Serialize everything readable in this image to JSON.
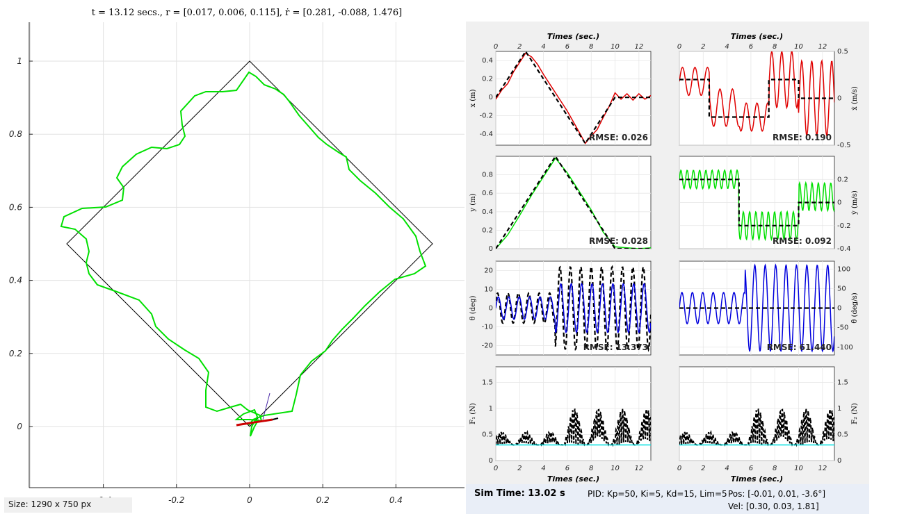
{
  "main_title": "t = 13.12 secs., r = [0.017, 0.006, 0.115], ṙ = [0.281, -0.088, 1.476]",
  "size_label": "Size: 1290 x 750 px",
  "status": {
    "sim_time": "Sim Time: 13.02 s",
    "pid": "PID: Kp=50, Ki=5, Kd=15, Lim=5",
    "pos": "Pos: [-0.01, 0.01, -3.6°]",
    "vel": "Vel: [0.30, 0.03, 1.81]"
  },
  "colors": {
    "reference": "#000000",
    "trajectory": "#00e000",
    "x": "#e00000",
    "y": "#00e000",
    "theta": "#0000dd",
    "force": "#000000",
    "force_ref": "#00e0e0"
  },
  "chart_data": [
    {
      "type": "line",
      "name": "trajectory",
      "title": "t = 13.12 secs., r = [0.017, 0.006, 0.115], ṙ = [0.281, -0.088, 1.476]",
      "xlim": [
        -0.6,
        0.6
      ],
      "ylim": [
        -0.17,
        1.08
      ],
      "xticks": [
        -0.6,
        -0.4,
        -0.2,
        0,
        0.2,
        0.4
      ],
      "yticks": [
        0,
        0.2,
        0.4,
        0.6,
        0.8,
        1
      ],
      "grid": true,
      "series": [
        {
          "x": [
            0,
            0.5,
            0,
            -0.5,
            0
          ],
          "y": [
            0,
            0.5,
            1,
            0.5,
            0
          ],
          "style": "black-thin"
        },
        {
          "x": [
            0.0,
            0.07,
            0.15,
            0.22,
            0.28,
            0.33,
            0.38,
            0.43,
            0.48,
            0.47,
            0.42,
            0.37,
            0.31,
            0.27,
            0.21,
            0.15,
            0.11,
            0.08,
            0.03,
            -0.02,
            0.0
          ],
          "y": [
            0.0,
            0.04,
            0.13,
            0.21,
            0.29,
            0.36,
            0.4,
            0.43,
            0.49,
            0.55,
            0.63,
            0.68,
            0.76,
            0.81,
            0.88,
            0.96,
            0.94,
            0.95,
            0.98,
            0.93,
            0.0
          ],
          "style": "green-approx"
        }
      ]
    },
    {
      "type": "line",
      "name": "x",
      "xlabel": "Times (sec.)",
      "ylabel": "x (m)",
      "xlim": [
        0,
        13
      ],
      "ylim": [
        -0.52,
        0.5
      ],
      "yticks": [
        -0.4,
        -0.2,
        0,
        0.2,
        0.4
      ],
      "rmse": "RMSE: 0.026",
      "reference": {
        "t": [
          0,
          2.5,
          7.5,
          10,
          13
        ],
        "v": [
          0,
          0.5,
          -0.5,
          0,
          0
        ]
      },
      "actual": {
        "t": [
          0,
          0.5,
          1,
          1.5,
          2,
          2.5,
          3,
          3.5,
          4,
          5,
          6,
          7,
          7.5,
          8,
          8.5,
          9,
          9.5,
          10,
          10.5,
          11,
          11.5,
          12,
          12.5,
          13
        ],
        "v": [
          -0.02,
          0.08,
          0.15,
          0.28,
          0.38,
          0.48,
          0.44,
          0.36,
          0.25,
          0.05,
          -0.15,
          -0.38,
          -0.5,
          -0.42,
          -0.35,
          -0.22,
          -0.1,
          0.05,
          -0.02,
          0.04,
          -0.03,
          0.04,
          -0.02,
          0.02
        ]
      }
    },
    {
      "type": "line",
      "name": "xdot",
      "xlabel": "Times (sec.)",
      "ylabel": "ẋ (m/s)",
      "xlim": [
        0,
        13
      ],
      "ylim": [
        -0.5,
        0.5
      ],
      "yticks": [
        -0.5,
        0,
        0.5
      ],
      "rmse": "RMSE: 0.190",
      "reference": {
        "t": [
          0,
          2.5,
          2.5,
          7.5,
          7.5,
          10,
          10,
          13
        ],
        "v": [
          0.2,
          0.2,
          -0.2,
          -0.2,
          0.2,
          0.2,
          0,
          0
        ]
      },
      "actual": {
        "note_free": true,
        "t": [
          0,
          13
        ],
        "v": [
          0,
          0
        ]
      }
    },
    {
      "type": "line",
      "name": "y",
      "xlabel": "Times (sec.)",
      "ylabel": "y (m)",
      "xlim": [
        0,
        13
      ],
      "ylim": [
        0,
        1
      ],
      "yticks": [
        0,
        0.2,
        0.4,
        0.6,
        0.8
      ],
      "rmse": "RMSE: 0.028",
      "reference": {
        "t": [
          0,
          5,
          10,
          13
        ],
        "v": [
          0,
          1,
          0,
          0
        ]
      },
      "actual": {
        "t": [
          0,
          1,
          2,
          3,
          4,
          5,
          6,
          7,
          8,
          9,
          10,
          11,
          12,
          13
        ],
        "v": [
          0,
          0.15,
          0.36,
          0.58,
          0.78,
          0.98,
          0.82,
          0.62,
          0.42,
          0.18,
          0.02,
          0.01,
          0.0,
          0.01
        ]
      }
    },
    {
      "type": "line",
      "name": "ydot",
      "xlabel": "Times (sec.)",
      "ylabel": "ẏ (m/s)",
      "xlim": [
        0,
        13
      ],
      "ylim": [
        -0.4,
        0.4
      ],
      "yticks": [
        -0.4,
        -0.2,
        0,
        0.2
      ],
      "rmse": "RMSE: 0.092",
      "reference": {
        "t": [
          0,
          5,
          5,
          10,
          10,
          13
        ],
        "v": [
          0.2,
          0.2,
          -0.2,
          -0.2,
          0,
          0
        ]
      }
    },
    {
      "type": "line",
      "name": "theta",
      "xlabel": "Times (sec.)",
      "ylabel": "θ (deg)",
      "xlim": [
        0,
        13
      ],
      "ylim": [
        -25,
        25
      ],
      "yticks": [
        -20,
        -10,
        0,
        10,
        20
      ],
      "rmse": "RMSE: 13.373"
    },
    {
      "type": "line",
      "name": "thetadot",
      "xlabel": "Times (sec.)",
      "ylabel": "θ̇ (deg/s)",
      "xlim": [
        0,
        13
      ],
      "ylim": [
        -120,
        120
      ],
      "yticks": [
        -100,
        -50,
        0,
        50,
        100
      ],
      "rmse": "RMSE: 61.440"
    },
    {
      "type": "line",
      "name": "F1",
      "xlabel": "Times (sec.)",
      "ylabel": "F₁ (N)",
      "xlim": [
        0,
        13
      ],
      "ylim": [
        0,
        1.8
      ],
      "yticks": [
        0,
        0.5,
        1,
        1.5
      ]
    },
    {
      "type": "line",
      "name": "F2",
      "xlabel": "Times (sec.)",
      "ylabel": "F₂ (N)",
      "xlim": [
        0,
        13
      ],
      "ylim": [
        0,
        1.8
      ],
      "yticks": [
        0,
        0.5,
        1,
        1.5
      ]
    }
  ],
  "axis_labels": {
    "time": "Times (sec.)",
    "x": "x (m)",
    "xdot": "ẋ (m/s)",
    "y": "y (m)",
    "ydot": "ẏ (m/s)",
    "theta": "θ (deg)",
    "thetadot": "θ̇ (deg/s)",
    "F1": "F₁ (N)",
    "F2": "F₂ (N)"
  },
  "xticks_time": [
    "0",
    "2",
    "4",
    "6",
    "8",
    "10",
    "12"
  ]
}
